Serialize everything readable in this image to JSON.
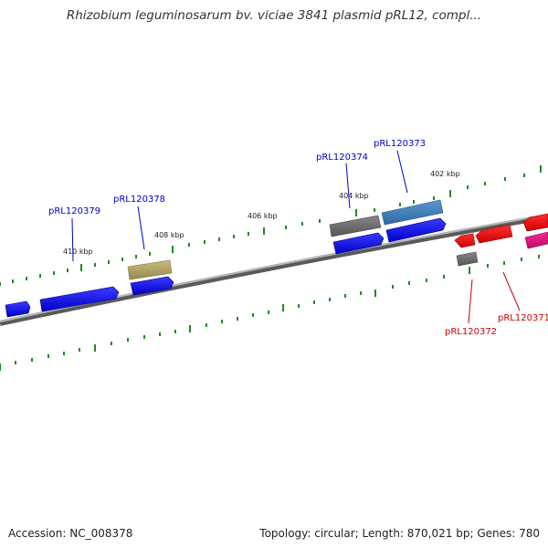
{
  "header": {
    "title": "Rhizobium leguminosarum bv. viciae 3841 plasmid pRL12, compl..."
  },
  "footer": {
    "accession": "Accession: NC_008378",
    "summary": "Topology: circular; Length: 870,021 bp; Genes: 780"
  },
  "scale_labels": [
    "410 kbp",
    "408 kbp",
    "406 kbp",
    "404 kbp",
    "402 kbp"
  ],
  "gene_labels": {
    "pRL120379": "pRL120379",
    "pRL120378": "pRL120378",
    "pRL120374": "pRL120374",
    "pRL120373": "pRL120373",
    "pRL120372": "pRL120372",
    "pRL120371": "pRL120371"
  },
  "colors": {
    "backbone": "#7a7a7a",
    "tick": "#1e8a1e",
    "forward_gene": "#0000e6",
    "reverse_gene": "#e60000",
    "gray_feature": "#666666",
    "olive_feature": "#a89c5e",
    "steel_feature": "#3d78b0",
    "magenta_feature": "#d8127a",
    "label_blue": "#0000cc",
    "label_red": "#cc0000"
  }
}
